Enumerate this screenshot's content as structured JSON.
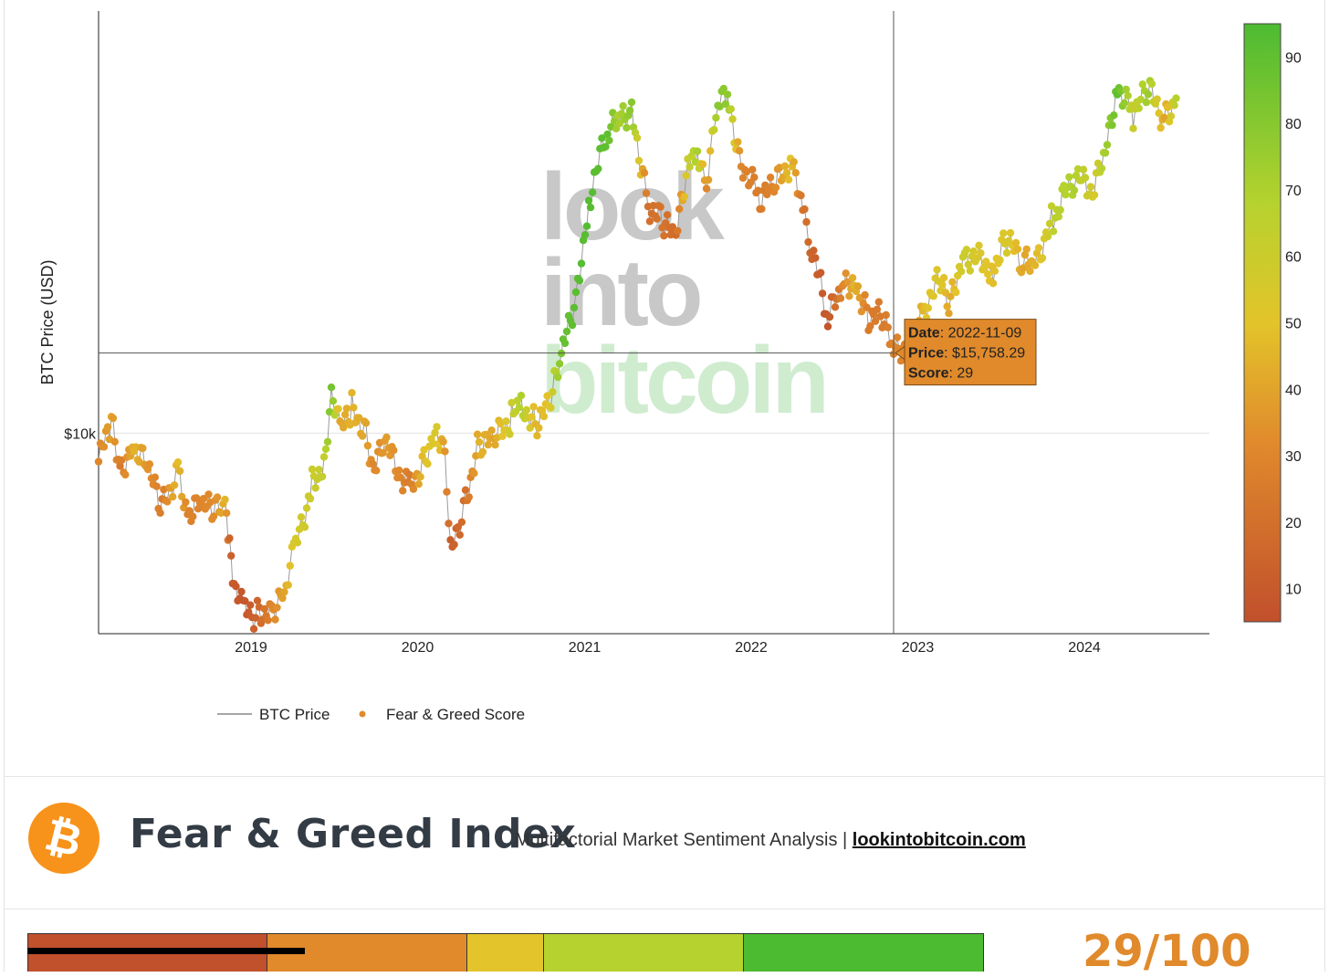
{
  "chart_data": {
    "type": "scatter",
    "ylabel": "BTC Price (USD)",
    "y_scale": "log",
    "y_tick_labels": [
      {
        "value": 10000,
        "label": "$10k"
      }
    ],
    "x_tick_labels": [
      "2019",
      "2020",
      "2021",
      "2022",
      "2023",
      "2024"
    ],
    "x_range": [
      "2018-02-01",
      "2024-10-01"
    ],
    "y_range": [
      3200,
      110000
    ],
    "grid": true,
    "legend_position": "bottom-left",
    "legend": [
      {
        "label": "BTC Price",
        "kind": "line",
        "color": "#888888"
      },
      {
        "label": "Fear & Greed Score",
        "kind": "marker",
        "color": "#e08a2c"
      }
    ],
    "colorbar": {
      "min": 5,
      "max": 95,
      "ticks": [
        "10",
        "20",
        "30",
        "40",
        "50",
        "60",
        "70",
        "80",
        "90"
      ]
    },
    "color_scale": [
      "#c1502c",
      "#e08a2c",
      "#e3c42a",
      "#b6d22e",
      "#4dbb32"
    ],
    "series": [
      {
        "points": [
          [
            "2018-02-01",
            8500,
            30
          ],
          [
            "2018-03-01",
            10500,
            40
          ],
          [
            "2018-03-20",
            8200,
            25
          ],
          [
            "2018-04-20",
            9300,
            45
          ],
          [
            "2018-05-20",
            8100,
            35
          ],
          [
            "2018-06-20",
            6500,
            25
          ],
          [
            "2018-07-25",
            8200,
            48
          ],
          [
            "2018-08-15",
            6400,
            28
          ],
          [
            "2018-09-15",
            6600,
            30
          ],
          [
            "2018-10-15",
            6400,
            33
          ],
          [
            "2018-11-05",
            6500,
            45
          ],
          [
            "2018-11-15",
            5500,
            15
          ],
          [
            "2018-11-25",
            4200,
            10
          ],
          [
            "2018-12-15",
            3600,
            8
          ],
          [
            "2019-01-15",
            3600,
            15
          ],
          [
            "2019-02-15",
            3700,
            30
          ],
          [
            "2019-03-15",
            4000,
            40
          ],
          [
            "2019-04-05",
            5000,
            55
          ],
          [
            "2019-05-15",
            7500,
            60
          ],
          [
            "2019-06-10",
            8500,
            63
          ],
          [
            "2019-06-26",
            12800,
            85
          ],
          [
            "2019-07-15",
            10000,
            40
          ],
          [
            "2019-08-10",
            11500,
            45
          ],
          [
            "2019-09-10",
            10200,
            40
          ],
          [
            "2019-09-25",
            8300,
            30
          ],
          [
            "2019-10-25",
            9200,
            38
          ],
          [
            "2019-12-15",
            7200,
            25
          ],
          [
            "2020-01-15",
            8700,
            50
          ],
          [
            "2020-02-12",
            10300,
            55
          ],
          [
            "2020-03-01",
            8600,
            35
          ],
          [
            "2020-03-13",
            5000,
            12
          ],
          [
            "2020-04-15",
            6900,
            20
          ],
          [
            "2020-05-15",
            9500,
            45
          ],
          [
            "2020-06-15",
            9400,
            40
          ],
          [
            "2020-07-25",
            11000,
            60
          ],
          [
            "2020-08-15",
            11800,
            70
          ],
          [
            "2020-09-15",
            10600,
            45
          ],
          [
            "2020-10-15",
            11500,
            50
          ],
          [
            "2020-11-15",
            16000,
            88
          ],
          [
            "2020-12-17",
            23000,
            92
          ],
          [
            "2021-01-10",
            38000,
            93
          ],
          [
            "2021-02-20",
            55000,
            90
          ],
          [
            "2021-03-15",
            58000,
            70
          ],
          [
            "2021-04-14",
            63000,
            80
          ],
          [
            "2021-05-20",
            37000,
            20
          ],
          [
            "2021-06-20",
            33000,
            22
          ],
          [
            "2021-07-20",
            30000,
            18
          ],
          [
            "2021-08-15",
            46000,
            60
          ],
          [
            "2021-09-05",
            51000,
            72
          ],
          [
            "2021-09-25",
            42000,
            30
          ],
          [
            "2021-10-20",
            64000,
            80
          ],
          [
            "2021-11-10",
            67000,
            78
          ],
          [
            "2021-12-10",
            47000,
            30
          ],
          [
            "2022-01-20",
            38000,
            25
          ],
          [
            "2022-02-20",
            40000,
            30
          ],
          [
            "2022-03-28",
            47000,
            50
          ],
          [
            "2022-04-20",
            40000,
            25
          ],
          [
            "2022-05-10",
            30000,
            15
          ],
          [
            "2022-06-18",
            19000,
            8
          ],
          [
            "2022-07-20",
            23000,
            30
          ],
          [
            "2022-08-15",
            24000,
            45
          ],
          [
            "2022-09-15",
            19500,
            25
          ],
          [
            "2022-10-15",
            19200,
            25
          ],
          [
            "2022-11-09",
            15758.29,
            29
          ],
          [
            "2022-12-15",
            16800,
            30
          ],
          [
            "2023-01-20",
            21000,
            50
          ],
          [
            "2023-02-20",
            24000,
            55
          ],
          [
            "2023-03-10",
            20000,
            40
          ],
          [
            "2023-04-10",
            28000,
            60
          ],
          [
            "2023-06-15",
            25500,
            48
          ],
          [
            "2023-07-15",
            30000,
            56
          ],
          [
            "2023-08-20",
            26000,
            40
          ],
          [
            "2023-09-15",
            26500,
            45
          ],
          [
            "2023-10-25",
            34000,
            65
          ],
          [
            "2023-12-10",
            43000,
            70
          ],
          [
            "2024-01-23",
            39500,
            55
          ],
          [
            "2024-02-20",
            52000,
            75
          ],
          [
            "2024-03-13",
            73000,
            90
          ],
          [
            "2024-04-17",
            61000,
            60
          ],
          [
            "2024-05-20",
            70000,
            75
          ],
          [
            "2024-06-24",
            60000,
            40
          ],
          [
            "2024-07-20",
            67000,
            68
          ]
        ]
      }
    ],
    "crosshair": {
      "date": "2022-11-09",
      "price": 15758.29
    },
    "tooltip": {
      "date_label": "Date",
      "date_value": "2022-11-09",
      "price_label": "Price",
      "price_value": "$15,758.29",
      "score_label": "Score",
      "score_value": "29"
    },
    "watermark": [
      "look",
      "into",
      "bitcoin"
    ]
  },
  "index": {
    "logo_glyph": "₿",
    "title": "Fear & Greed Index",
    "subtitle": "Multifactorial Market Sentiment Analysis | ",
    "link_text": "lookintobitcoin.com",
    "score": "29/100",
    "gauge_colors": [
      "#c1502c",
      "#e08a2c",
      "#e3c42a",
      "#b6d22e",
      "#4dbb32"
    ],
    "gauge_bands": [
      25,
      46,
      54,
      75,
      100
    ],
    "marker_value": 29
  }
}
